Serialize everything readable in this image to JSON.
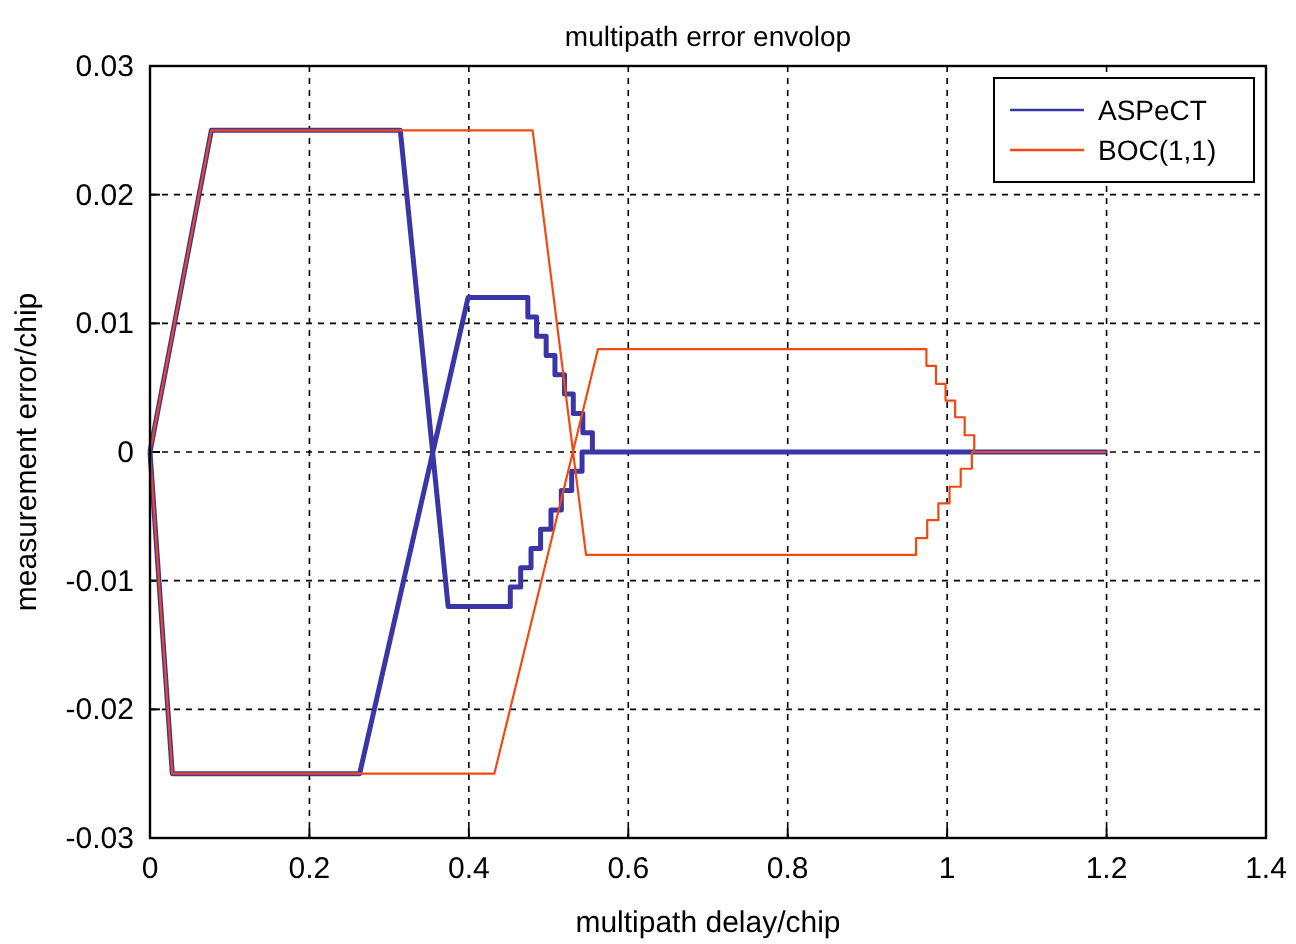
{
  "chart_data": {
    "type": "line",
    "title": "multipath error envolop",
    "xlabel": "multipath delay/chip",
    "ylabel": "measurement error/chip",
    "xlim": [
      0,
      1.4
    ],
    "ylim": [
      -0.03,
      0.03
    ],
    "xticks": [
      0,
      0.2,
      0.4,
      0.6,
      0.8,
      1,
      1.2,
      1.4
    ],
    "yticks": [
      -0.03,
      -0.02,
      -0.01,
      0,
      0.01,
      0.02,
      0.03
    ],
    "grid": true,
    "legend": "top right",
    "series": [
      {
        "name": "ASPeCT",
        "color": "#3a36a8",
        "x": [
          0,
          0.077,
          0.314,
          0.374,
          0.452,
          0.452,
          0.465,
          0.465,
          0.478,
          0.478,
          0.49,
          0.49,
          0.503,
          0.503,
          0.516,
          0.516,
          0.529,
          0.529,
          0.542,
          0.542,
          0.555,
          1.2,
          null,
          0,
          0.028,
          0.263,
          0.399,
          0.474,
          0.474,
          0.485,
          0.485,
          0.497,
          0.497,
          0.508,
          0.508,
          0.52,
          0.52,
          0.531,
          0.531,
          0.543,
          0.543,
          0.555,
          0.555,
          1.2
        ],
        "values": [
          0,
          0.025,
          0.025,
          -0.012,
          -0.012,
          -0.0105,
          -0.0105,
          -0.009,
          -0.009,
          -0.0075,
          -0.0075,
          -0.006,
          -0.006,
          -0.0045,
          -0.0045,
          -0.003,
          -0.003,
          -0.0015,
          -0.0015,
          0,
          0,
          0,
          null,
          0,
          -0.025,
          -0.025,
          0.012,
          0.012,
          0.0105,
          0.0105,
          0.009,
          0.009,
          0.0075,
          0.0075,
          0.006,
          0.006,
          0.0045,
          0.0045,
          0.003,
          0.003,
          0.0015,
          0.0015,
          0,
          0
        ]
      },
      {
        "name": "BOC(1,1)",
        "color": "#f04a12",
        "x": [
          0,
          0.077,
          0.48,
          0.547,
          0.961,
          0.961,
          0.975,
          0.975,
          0.989,
          0.989,
          1.003,
          1.003,
          1.017,
          1.017,
          1.031,
          1.031,
          1.045,
          1.045,
          1.2,
          null,
          0,
          0.028,
          0.432,
          0.562,
          0.974,
          0.974,
          0.986,
          0.986,
          0.998,
          0.998,
          1.01,
          1.01,
          1.022,
          1.022,
          1.034,
          1.034,
          1.045,
          1.045,
          1.2
        ],
        "values": [
          0,
          0.025,
          0.025,
          -0.008,
          -0.008,
          -0.0067,
          -0.0067,
          -0.0053,
          -0.0053,
          -0.004,
          -0.004,
          -0.0027,
          -0.0027,
          -0.0013,
          -0.0013,
          0,
          0,
          0,
          0,
          null,
          0,
          -0.025,
          -0.025,
          0.008,
          0.008,
          0.0067,
          0.0067,
          0.0053,
          0.0053,
          0.004,
          0.004,
          0.0027,
          0.0027,
          0.0013,
          0.0013,
          0,
          0,
          0,
          0
        ]
      }
    ]
  }
}
